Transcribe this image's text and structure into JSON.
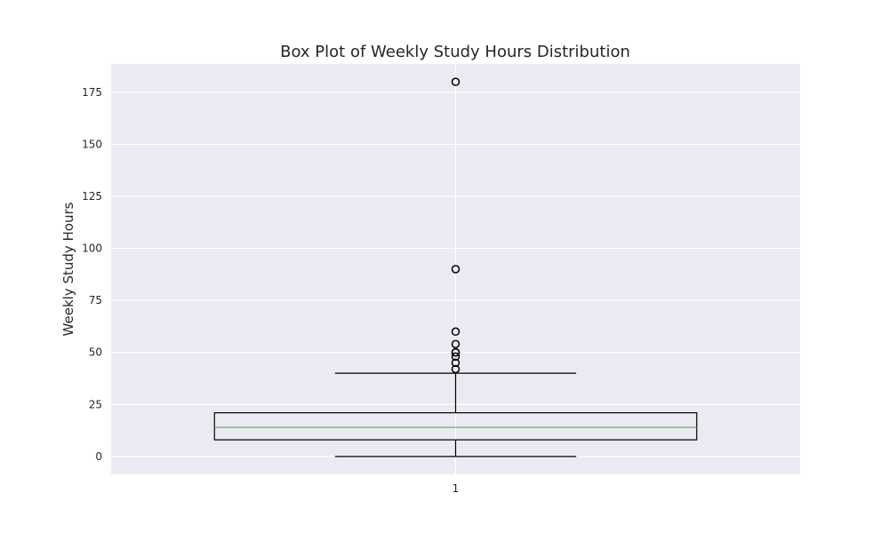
{
  "chart_data": {
    "type": "box",
    "title": "Box Plot of Weekly Study Hours Distribution",
    "xlabel": "",
    "ylabel": "Weekly Study Hours",
    "categories": [
      "1"
    ],
    "yticks": [
      0,
      25,
      50,
      75,
      100,
      125,
      150,
      175
    ],
    "ylim": [
      -8.6,
      188.6
    ],
    "grid": true,
    "boxes": [
      {
        "category": "1",
        "whisker_low": 0,
        "q1": 8,
        "median": 14,
        "q3": 21,
        "whisker_high": 40,
        "outliers": [
          42,
          45,
          48,
          50,
          50,
          54,
          60,
          90,
          180
        ]
      }
    ],
    "colors": {
      "background": "#eaeaf2",
      "grid": "#ffffff",
      "box": "#000000",
      "median": "#55a868",
      "outlier": "#000000"
    }
  }
}
